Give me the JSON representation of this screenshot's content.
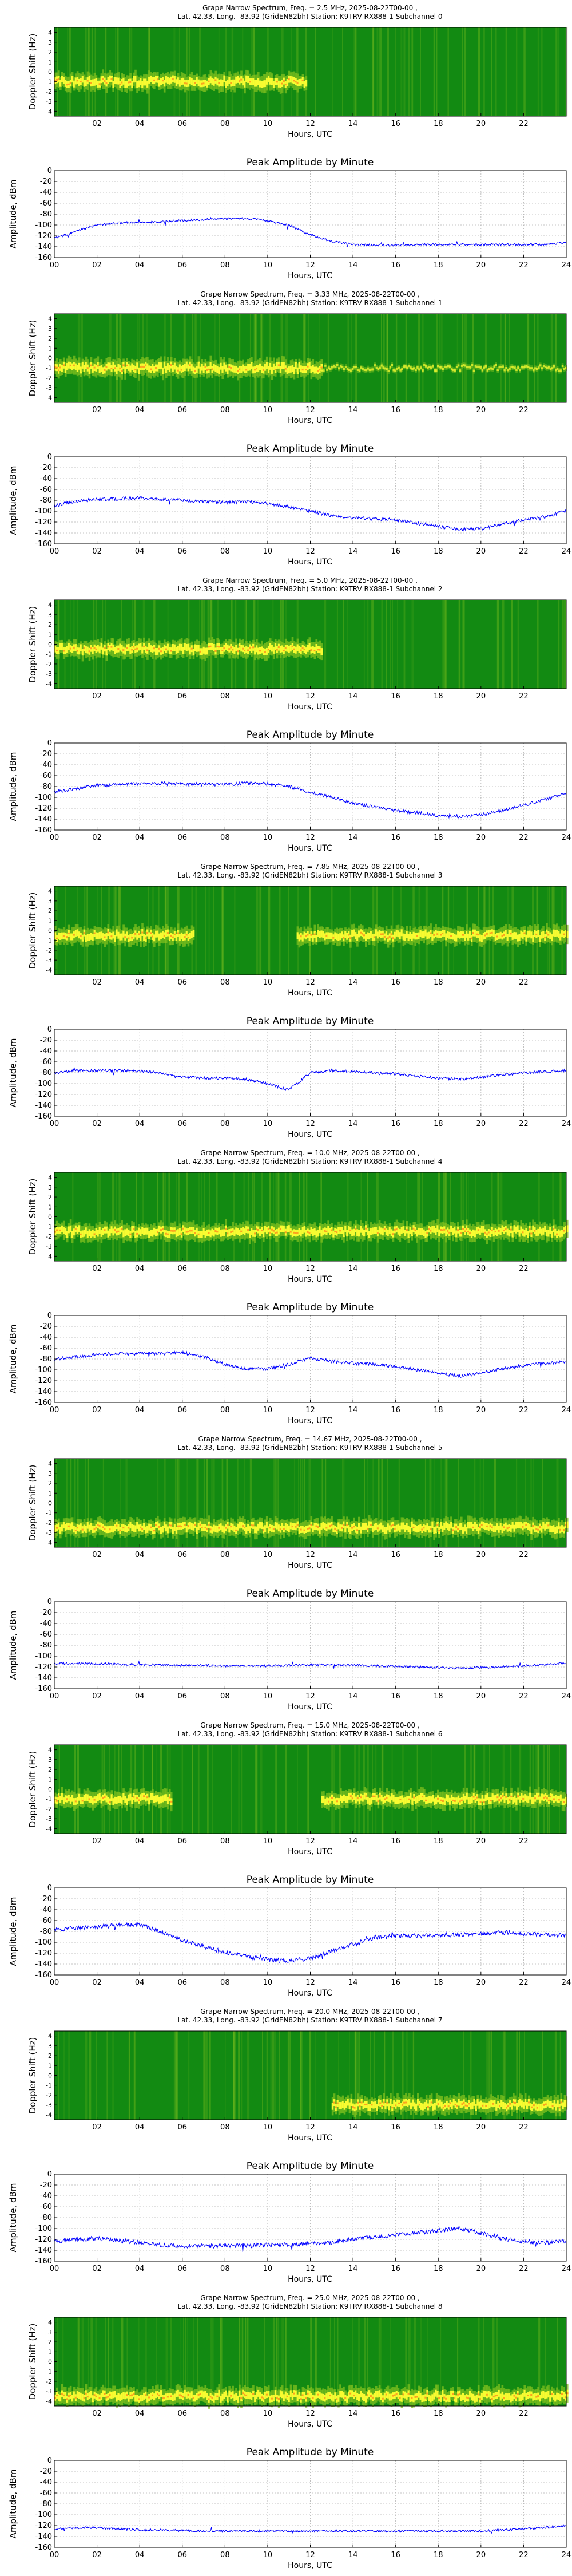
{
  "figure": {
    "common": {
      "spectrogram_ylabel": "Doppler Shift (Hz)",
      "amplitude_ylabel": "Amplitude, dBm",
      "xlabel": "Hours, UTC",
      "amplitude_title": "Peak Amplitude by Minute",
      "location_line": "Lat.  42.33, Long. -83.92 (Grid EN82bh) Station: K9TRV RX888-1",
      "spectrogram_yticks": [
        -4,
        -3,
        -2,
        -1,
        0,
        1,
        2,
        3,
        4
      ],
      "spectrogram_xticks": [
        "02",
        "04",
        "06",
        "08",
        "10",
        "12",
        "14",
        "16",
        "18",
        "20",
        "22"
      ],
      "amplitude_xticks": [
        "00",
        "02",
        "04",
        "06",
        "08",
        "10",
        "12",
        "14",
        "16",
        "18",
        "20",
        "22",
        "24"
      ],
      "amplitude_yticks": [
        0,
        -20,
        -40,
        -60,
        -80,
        -100,
        -120,
        -140,
        -160
      ],
      "amplitude_ylim": [
        -160,
        0
      ],
      "colors": {
        "line": "#0000ff",
        "spec_bg": "#128a12",
        "spec_mid": "#7fbf1f",
        "spec_hot": "#ffff33",
        "spec_peak": "#ff8c1a",
        "grid": "#b0b0b0"
      }
    },
    "panels": [
      {
        "subchannel": 0,
        "title_line1": "Grape Narrow Spectrum, Freq. = 2.5 MHz, 2025-08-22T00-00 ,",
        "title_line2": "Lat.  42.33, Long. -83.92 (GridEN82bh) Station: K9TRV RX888-1 Subchannel 0",
        "chart_data": {
          "type": "line",
          "title": "Peak Amplitude by Minute",
          "xlabel": "Hours, UTC",
          "ylabel": "Amplitude, dBm",
          "xlim": [
            0,
            24
          ],
          "ylim": [
            -160,
            0
          ],
          "x": [
            0,
            1,
            2,
            3,
            4,
            5,
            6,
            7,
            8,
            9,
            10,
            11,
            12,
            13,
            14,
            15,
            16,
            17,
            18,
            19,
            20,
            21,
            22,
            23,
            24
          ],
          "y": [
            -125,
            -112,
            -100,
            -96,
            -95,
            -94,
            -92,
            -90,
            -88,
            -88,
            -92,
            -100,
            -118,
            -130,
            -136,
            -137,
            -137,
            -136,
            -136,
            -136,
            -136,
            -136,
            -136,
            -136,
            -132
          ],
          "noise": 2,
          "spectrogram": {
            "line_start": 0,
            "line_end": 11.8,
            "line_offset": -1,
            "drift": 0
          }
        }
      },
      {
        "subchannel": 1,
        "title_line1": "Grape Narrow Spectrum, Freq. = 3.33 MHz, 2025-08-22T00-00 ,",
        "title_line2": "Lat.  42.33, Long. -83.92 (GridEN82bh) Station: K9TRV RX888-1 Subchannel 1",
        "chart_data": {
          "type": "line",
          "title": "Peak Amplitude by Minute",
          "xlabel": "Hours, UTC",
          "ylabel": "Amplitude, dBm",
          "xlim": [
            0,
            24
          ],
          "ylim": [
            -160,
            0
          ],
          "x": [
            0,
            1,
            2,
            3,
            4,
            5,
            6,
            7,
            8,
            9,
            10,
            11,
            12,
            13,
            14,
            15,
            16,
            17,
            18,
            19,
            20,
            21,
            22,
            23,
            24
          ],
          "y": [
            -90,
            -82,
            -78,
            -77,
            -76,
            -78,
            -80,
            -82,
            -84,
            -82,
            -86,
            -92,
            -100,
            -108,
            -112,
            -114,
            -116,
            -122,
            -128,
            -134,
            -132,
            -124,
            -116,
            -110,
            -100
          ],
          "noise": 3,
          "spectrogram": {
            "line_start": 0,
            "line_end": 12.5,
            "line_offset": -1,
            "drift": 0,
            "faint_line_start": 12.5,
            "faint_line_end": 24
          }
        }
      },
      {
        "subchannel": 2,
        "title_line1": "Grape Narrow Spectrum, Freq. = 5.0 MHz, 2025-08-22T00-00 ,",
        "title_line2": "Lat.  42.33, Long. -83.92 (GridEN82bh) Station: K9TRV RX888-1 Subchannel 2",
        "chart_data": {
          "type": "line",
          "title": "Peak Amplitude by Minute",
          "xlabel": "Hours, UTC",
          "ylabel": "Amplitude, dBm",
          "xlim": [
            0,
            24
          ],
          "ylim": [
            -160,
            0
          ],
          "x": [
            0,
            1,
            2,
            3,
            4,
            5,
            6,
            7,
            8,
            9,
            10,
            11,
            12,
            13,
            14,
            15,
            16,
            17,
            18,
            19,
            20,
            21,
            22,
            23,
            24
          ],
          "y": [
            -90,
            -84,
            -78,
            -76,
            -75,
            -74,
            -75,
            -76,
            -76,
            -74,
            -75,
            -80,
            -90,
            -100,
            -110,
            -118,
            -124,
            -128,
            -134,
            -136,
            -132,
            -124,
            -114,
            -104,
            -92
          ],
          "noise": 3,
          "spectrogram": {
            "line_start": 0,
            "line_end": 12.5,
            "line_offset": -0.5,
            "drift": 0
          }
        }
      },
      {
        "subchannel": 3,
        "title_line1": "Grape Narrow Spectrum, Freq. = 7.85 MHz, 2025-08-22T00-00 ,",
        "title_line2": "Lat.  42.33, Long. -83.92 (GridEN82bh) Station: K9TRV RX888-1 Subchannel 3",
        "chart_data": {
          "type": "line",
          "title": "Peak Amplitude by Minute",
          "xlabel": "Hours, UTC",
          "ylabel": "Amplitude, dBm",
          "xlim": [
            0,
            24
          ],
          "ylim": [
            -160,
            0
          ],
          "x": [
            0,
            1,
            2,
            3,
            4,
            5,
            6,
            7,
            8,
            9,
            10,
            11,
            12,
            13,
            14,
            15,
            16,
            17,
            18,
            19,
            20,
            21,
            22,
            23,
            24
          ],
          "y": [
            -80,
            -76,
            -76,
            -76,
            -77,
            -80,
            -88,
            -90,
            -90,
            -92,
            -100,
            -112,
            -80,
            -76,
            -78,
            -80,
            -82,
            -86,
            -90,
            -92,
            -88,
            -84,
            -80,
            -78,
            -76
          ],
          "noise": 2.5,
          "spectrogram": {
            "line_start": 0,
            "line_end": 24,
            "line_offset": -0.5,
            "drift": 0,
            "gap_start": 6.5,
            "gap_end": 11.3
          }
        }
      },
      {
        "subchannel": 4,
        "title_line1": "Grape Narrow Spectrum, Freq. = 10.0 MHz, 2025-08-22T00-00 ,",
        "title_line2": "Lat.  42.33, Long. -83.92 (GridEN82bh) Station: K9TRV RX888-1 Subchannel 4",
        "chart_data": {
          "type": "line",
          "title": "Peak Amplitude by Minute",
          "xlabel": "Hours, UTC",
          "ylabel": "Amplitude, dBm",
          "xlim": [
            0,
            24
          ],
          "ylim": [
            -160,
            0
          ],
          "x": [
            0,
            1,
            2,
            3,
            4,
            5,
            6,
            7,
            8,
            9,
            10,
            11,
            12,
            13,
            14,
            15,
            16,
            17,
            18,
            19,
            20,
            21,
            22,
            23,
            24
          ],
          "y": [
            -80,
            -76,
            -72,
            -70,
            -70,
            -70,
            -68,
            -76,
            -90,
            -98,
            -98,
            -90,
            -78,
            -84,
            -88,
            -90,
            -94,
            -100,
            -106,
            -112,
            -106,
            -98,
            -92,
            -88,
            -84
          ],
          "noise": 3,
          "spectrogram": {
            "line_start": 0,
            "line_end": 24,
            "line_offset": -1.5,
            "drift": 0
          }
        }
      },
      {
        "subchannel": 5,
        "title_line1": "Grape Narrow Spectrum, Freq. = 14.67 MHz, 2025-08-22T00-00 ,",
        "title_line2": "Lat.  42.33, Long. -83.92 (GridEN82bh) Station: K9TRV RX888-1 Subchannel 5",
        "chart_data": {
          "type": "line",
          "title": "Peak Amplitude by Minute",
          "xlabel": "Hours, UTC",
          "ylabel": "Amplitude, dBm",
          "xlim": [
            0,
            24
          ],
          "ylim": [
            -160,
            0
          ],
          "x": [
            0,
            1,
            2,
            3,
            4,
            5,
            6,
            7,
            8,
            9,
            10,
            11,
            12,
            13,
            14,
            15,
            16,
            17,
            18,
            19,
            20,
            21,
            22,
            23,
            24
          ],
          "y": [
            -114,
            -113,
            -114,
            -115,
            -116,
            -116,
            -117,
            -117,
            -118,
            -118,
            -118,
            -117,
            -116,
            -116,
            -117,
            -118,
            -119,
            -120,
            -121,
            -122,
            -121,
            -120,
            -118,
            -116,
            -112
          ],
          "noise": 2,
          "spectrogram": {
            "line_start": 0,
            "line_end": 24,
            "line_offset": -2.5,
            "drift": 0
          }
        }
      },
      {
        "subchannel": 6,
        "title_line1": "Grape Narrow Spectrum, Freq. = 15.0 MHz, 2025-08-22T00-00 ,",
        "title_line2": "Lat.  42.33, Long. -83.92 (GridEN82bh) Station: K9TRV RX888-1 Subchannel 6",
        "chart_data": {
          "type": "line",
          "title": "Peak Amplitude by Minute",
          "xlabel": "Hours, UTC",
          "ylabel": "Amplitude, dBm",
          "xlim": [
            0,
            24
          ],
          "ylim": [
            -160,
            0
          ],
          "x": [
            0,
            1,
            2,
            3,
            4,
            5,
            6,
            7,
            8,
            9,
            10,
            11,
            12,
            13,
            14,
            15,
            16,
            17,
            18,
            19,
            20,
            21,
            22,
            23,
            24
          ],
          "y": [
            -76,
            -74,
            -72,
            -68,
            -68,
            -80,
            -96,
            -108,
            -118,
            -126,
            -132,
            -134,
            -130,
            -116,
            -104,
            -92,
            -88,
            -88,
            -88,
            -86,
            -84,
            -82,
            -84,
            -86,
            -88
          ],
          "noise": 4,
          "spectrogram": {
            "line_start": 0,
            "line_end": 5.5,
            "line_offset": -1,
            "drift": 0,
            "second_line_start": 12.5,
            "second_line_end": 24
          }
        }
      },
      {
        "subchannel": 7,
        "title_line1": "Grape Narrow Spectrum, Freq. = 20.0 MHz, 2025-08-22T00-00 ,",
        "title_line2": "Lat.  42.33, Long. -83.92 (GridEN82bh) Station: K9TRV RX888-1 Subchannel 7",
        "chart_data": {
          "type": "line",
          "title": "Peak Amplitude by Minute",
          "xlabel": "Hours, UTC",
          "ylabel": "Amplitude, dBm",
          "xlim": [
            0,
            24
          ],
          "ylim": [
            -160,
            0
          ],
          "x": [
            0,
            1,
            2,
            3,
            4,
            5,
            6,
            7,
            8,
            9,
            10,
            11,
            12,
            13,
            14,
            15,
            16,
            17,
            18,
            19,
            20,
            21,
            22,
            23,
            24
          ],
          "y": [
            -124,
            -120,
            -118,
            -122,
            -126,
            -130,
            -132,
            -132,
            -132,
            -132,
            -130,
            -130,
            -128,
            -126,
            -120,
            -116,
            -112,
            -108,
            -104,
            -100,
            -108,
            -118,
            -124,
            -126,
            -124
          ],
          "noise": 4,
          "spectrogram": {
            "line_start": 13,
            "line_end": 24,
            "line_offset": -3,
            "drift": 0
          }
        }
      },
      {
        "subchannel": 8,
        "title_line1": "Grape Narrow Spectrum, Freq. = 25.0 MHz, 2025-08-22T00-00 ,",
        "title_line2": "Lat.  42.33, Long. -83.92 (GridEN82bh) Station: K9TRV RX888-1 Subchannel 8",
        "chart_data": {
          "type": "line",
          "title": "Peak Amplitude by Minute",
          "xlabel": "Hours, UTC",
          "ylabel": "Amplitude, dBm",
          "xlim": [
            0,
            24
          ],
          "ylim": [
            -160,
            0
          ],
          "x": [
            0,
            1,
            2,
            3,
            4,
            5,
            6,
            7,
            8,
            9,
            10,
            11,
            12,
            13,
            14,
            15,
            16,
            17,
            18,
            19,
            20,
            21,
            22,
            23,
            24
          ],
          "y": [
            -126,
            -124,
            -124,
            -126,
            -128,
            -128,
            -129,
            -130,
            -130,
            -130,
            -130,
            -130,
            -130,
            -130,
            -130,
            -130,
            -130,
            -130,
            -130,
            -130,
            -130,
            -128,
            -126,
            -124,
            -120
          ],
          "noise": 2,
          "spectrogram": {
            "line_start": 0,
            "line_end": 24,
            "line_offset": -3.5,
            "drift": 0
          }
        }
      }
    ]
  }
}
